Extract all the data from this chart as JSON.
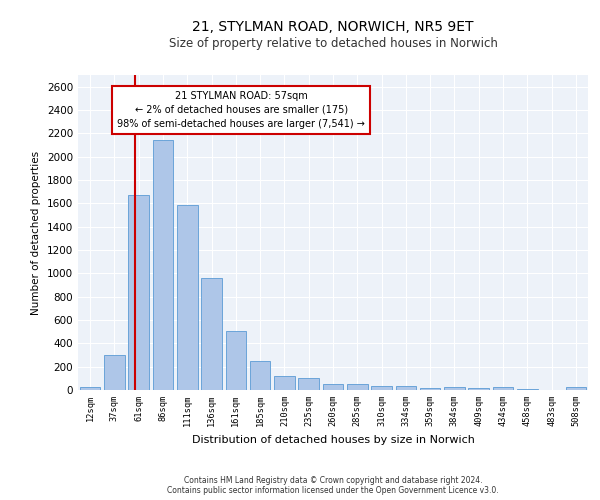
{
  "title_line1": "21, STYLMAN ROAD, NORWICH, NR5 9ET",
  "title_line2": "Size of property relative to detached houses in Norwich",
  "xlabel": "Distribution of detached houses by size in Norwich",
  "ylabel": "Number of detached properties",
  "categories": [
    "12sqm",
    "37sqm",
    "61sqm",
    "86sqm",
    "111sqm",
    "136sqm",
    "161sqm",
    "185sqm",
    "210sqm",
    "235sqm",
    "260sqm",
    "285sqm",
    "310sqm",
    "334sqm",
    "359sqm",
    "384sqm",
    "409sqm",
    "434sqm",
    "458sqm",
    "483sqm",
    "508sqm"
  ],
  "values": [
    25,
    300,
    1670,
    2140,
    1590,
    960,
    505,
    250,
    120,
    100,
    50,
    50,
    35,
    35,
    20,
    30,
    20,
    30,
    5,
    0,
    30
  ],
  "bar_color": "#aec6e8",
  "bar_edge_color": "#5b9bd5",
  "property_line_x": 1.85,
  "annotation_text_line1": "21 STYLMAN ROAD: 57sqm",
  "annotation_text_line2": "← 2% of detached houses are smaller (175)",
  "annotation_text_line3": "98% of semi-detached houses are larger (7,541) →",
  "annotation_box_color": "#ffffff",
  "annotation_box_edge_color": "#cc0000",
  "red_line_color": "#cc0000",
  "ylim": [
    0,
    2700
  ],
  "yticks": [
    0,
    200,
    400,
    600,
    800,
    1000,
    1200,
    1400,
    1600,
    1800,
    2000,
    2200,
    2400,
    2600
  ],
  "footer_line1": "Contains HM Land Registry data © Crown copyright and database right 2024.",
  "footer_line2": "Contains public sector information licensed under the Open Government Licence v3.0.",
  "plot_bg_color": "#edf2f9"
}
